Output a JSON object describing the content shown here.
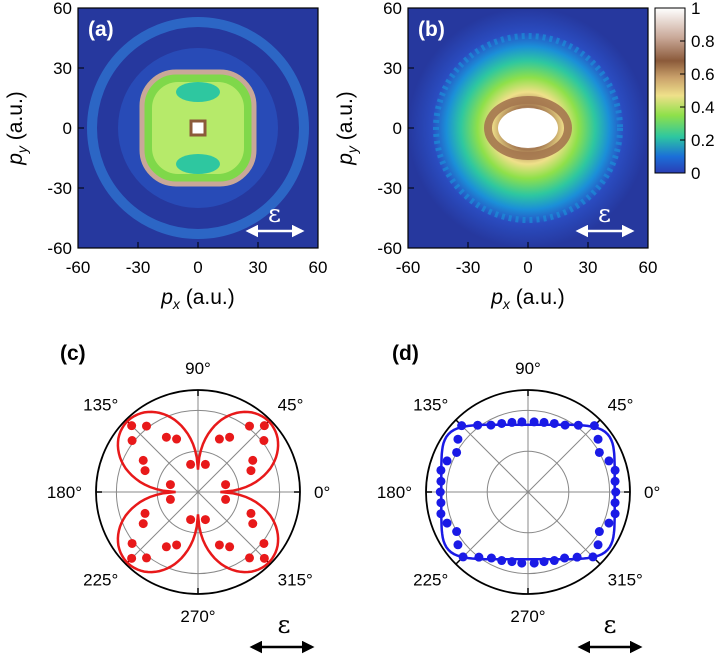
{
  "colors": {
    "red_series": "#e8191a",
    "blue_series": "#1a1ae6",
    "colormap": [
      "#2a3db4",
      "#1b6fd8",
      "#2ec7a0",
      "#8fe04a",
      "#efe08a",
      "#a4774f",
      "#c9a898",
      "#ffffff"
    ]
  },
  "colorbar": {
    "ticks": [
      "1",
      "0.8",
      "0.6",
      "0.4",
      "0.2",
      "0"
    ]
  },
  "chart_data": [
    {
      "id": "a",
      "type": "heatmap",
      "panel_label": "(a)",
      "xlabel_var": "p",
      "xlabel_sub": "x",
      "xlabel_unit": " (a.u.)",
      "ylabel_var": "p",
      "ylabel_sub": "y",
      "ylabel_unit": " (a.u.)",
      "xlim": [
        -60,
        60
      ],
      "ylim": [
        -60,
        60
      ],
      "xticks": [
        -60,
        -30,
        0,
        30,
        60
      ],
      "yticks": [
        60,
        30,
        0,
        -30,
        -60
      ],
      "annotation": "ε",
      "features": "rounded-square ring at |p|≈28 with bright corners, central spot, faint outer ring at |p|≈48",
      "zlim": [
        0,
        1
      ]
    },
    {
      "id": "b",
      "type": "heatmap",
      "panel_label": "(b)",
      "xlabel_var": "p",
      "xlabel_sub": "x",
      "xlabel_unit": " (a.u.)",
      "ylabel_var": "p",
      "ylabel_sub": "y",
      "ylabel_unit": " (a.u.)",
      "xlim": [
        -60,
        60
      ],
      "ylim": [
        -60,
        60
      ],
      "xticks": [
        -60,
        -30,
        0,
        30,
        60
      ],
      "yticks": [
        60,
        30,
        0,
        -30,
        -60
      ],
      "annotation": "ε",
      "features": "broad disk with saturated elongated center, speckled halo to |p|≈45",
      "zlim": [
        0,
        1
      ]
    },
    {
      "id": "c",
      "type": "polar",
      "panel_label": "(c)",
      "angle_labels": [
        "90°",
        "45°",
        "0°",
        "315°",
        "270°",
        "225°",
        "180°",
        "135°"
      ],
      "annotation": "ε",
      "rmax": 1,
      "curve": {
        "description": "four-lobed pattern peaking along 45°, 135°, 225°, 315°",
        "r_min": 0.22,
        "r_peak": 0.98
      },
      "points_deg_r": [
        [
          15,
          0.28
        ],
        [
          22,
          0.56
        ],
        [
          30,
          0.62
        ],
        [
          38,
          0.82
        ],
        [
          45,
          0.92
        ],
        [
          52,
          0.82
        ],
        [
          60,
          0.62
        ],
        [
          68,
          0.56
        ],
        [
          75,
          0.28
        ],
        [
          105,
          0.28
        ],
        [
          112,
          0.56
        ],
        [
          120,
          0.62
        ],
        [
          128,
          0.82
        ],
        [
          135,
          0.92
        ],
        [
          142,
          0.82
        ],
        [
          150,
          0.62
        ],
        [
          158,
          0.56
        ],
        [
          165,
          0.28
        ],
        [
          195,
          0.28
        ],
        [
          202,
          0.56
        ],
        [
          210,
          0.62
        ],
        [
          218,
          0.82
        ],
        [
          225,
          0.92
        ],
        [
          232,
          0.82
        ],
        [
          240,
          0.62
        ],
        [
          248,
          0.56
        ],
        [
          255,
          0.28
        ],
        [
          285,
          0.28
        ],
        [
          292,
          0.56
        ],
        [
          300,
          0.62
        ],
        [
          308,
          0.82
        ],
        [
          315,
          0.92
        ],
        [
          322,
          0.82
        ],
        [
          330,
          0.62
        ],
        [
          338,
          0.56
        ],
        [
          345,
          0.28
        ]
      ]
    },
    {
      "id": "d",
      "type": "polar",
      "panel_label": "(d)",
      "angle_labels": [
        "90°",
        "45°",
        "0°",
        "315°",
        "270°",
        "225°",
        "180°",
        "135°"
      ],
      "annotation": "ε",
      "rmax": 1,
      "curve": {
        "description": "rounded-rectangle shape, wider along 0°/180°",
        "a": 0.85,
        "b": 0.66
      },
      "points_deg_r": [
        [
          0,
          0.86
        ],
        [
          7,
          0.86
        ],
        [
          14,
          0.88
        ],
        [
          21,
          0.85
        ],
        [
          29,
          0.8
        ],
        [
          37,
          0.86
        ],
        [
          45,
          0.92
        ],
        [
          53,
          0.82
        ],
        [
          61,
          0.75
        ],
        [
          69,
          0.72
        ],
        [
          77,
          0.7
        ],
        [
          85,
          0.69
        ],
        [
          95,
          0.69
        ],
        [
          103,
          0.7
        ],
        [
          111,
          0.72
        ],
        [
          119,
          0.75
        ],
        [
          127,
          0.82
        ],
        [
          135,
          0.92
        ],
        [
          143,
          0.86
        ],
        [
          151,
          0.8
        ],
        [
          159,
          0.85
        ],
        [
          166,
          0.88
        ],
        [
          173,
          0.86
        ],
        [
          180,
          0.86
        ],
        [
          187,
          0.86
        ],
        [
          194,
          0.88
        ],
        [
          201,
          0.85
        ],
        [
          209,
          0.8
        ],
        [
          217,
          0.86
        ],
        [
          225,
          0.9
        ],
        [
          233,
          0.8
        ],
        [
          241,
          0.74
        ],
        [
          249,
          0.72
        ],
        [
          257,
          0.7
        ],
        [
          265,
          0.7
        ],
        [
          275,
          0.7
        ],
        [
          283,
          0.7
        ],
        [
          291,
          0.72
        ],
        [
          299,
          0.74
        ],
        [
          307,
          0.8
        ],
        [
          315,
          0.9
        ],
        [
          323,
          0.86
        ],
        [
          331,
          0.8
        ],
        [
          339,
          0.85
        ],
        [
          346,
          0.88
        ],
        [
          353,
          0.86
        ]
      ]
    }
  ]
}
